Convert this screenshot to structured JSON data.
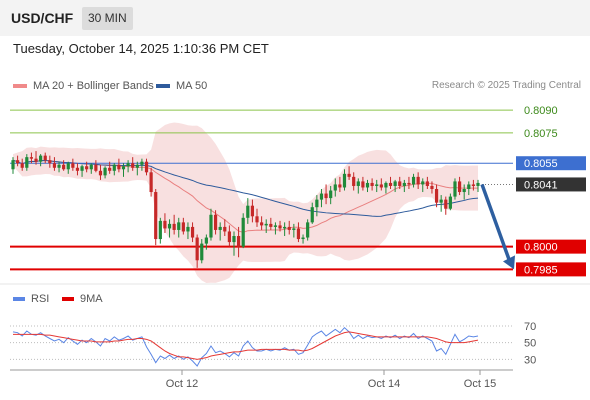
{
  "header": {
    "symbol": "USD/CHF",
    "timeframe": "30 MIN"
  },
  "datetime": "Tuesday, October 14, 2025 1:10:36 PM CET",
  "legend": {
    "ma20": "MA 20 + Bollinger Bands",
    "ma50": "MA 50"
  },
  "credit": "Research © 2025 Trading Central",
  "rsi_legend": {
    "rsi": "RSI",
    "ma": "9MA"
  },
  "colors": {
    "bollinger": "#f3c6c6",
    "ma20": "#e98080",
    "ma50": "#2e5b9c",
    "up": "#1f8a3a",
    "down": "#c62828",
    "resistance_green": "#8bc34a",
    "support_red": "#e00000",
    "pivot_blue": "#3d6fd0",
    "arrow": "#2e5fa0",
    "rsi": "#5b86e5",
    "rsi_ma": "#e53935"
  },
  "chart_data": {
    "type": "candlestick",
    "symbol": "USD/CHF",
    "ylim": [
      0.7978,
      0.8098
    ],
    "x_ticks": [
      "Oct 12",
      "Oct 14",
      "Oct 15"
    ],
    "levels": [
      {
        "value": 0.809,
        "label": "0.8090",
        "kind": "resistance"
      },
      {
        "value": 0.8075,
        "label": "0.8075",
        "kind": "resistance"
      },
      {
        "value": 0.8055,
        "label": "0.8055",
        "kind": "pivot"
      },
      {
        "value": 0.8041,
        "label": "0.8041",
        "kind": "last"
      },
      {
        "value": 0.8,
        "label": "0.8000",
        "kind": "support"
      },
      {
        "value": 0.7985,
        "label": "0.7985",
        "kind": "support"
      }
    ],
    "forecast": {
      "from": 0.8041,
      "to": 0.7985
    },
    "candles": [
      [
        0.8051,
        0.8059,
        0.8048,
        0.8057
      ],
      [
        0.8057,
        0.806,
        0.8053,
        0.8055
      ],
      [
        0.8055,
        0.8058,
        0.805,
        0.8052
      ],
      [
        0.8052,
        0.8061,
        0.805,
        0.8059
      ],
      [
        0.8059,
        0.8062,
        0.8055,
        0.8058
      ],
      [
        0.8058,
        0.8063,
        0.8054,
        0.8056
      ],
      [
        0.8056,
        0.8061,
        0.8053,
        0.806
      ],
      [
        0.806,
        0.8062,
        0.8055,
        0.8057
      ],
      [
        0.8057,
        0.806,
        0.8052,
        0.8055
      ],
      [
        0.8055,
        0.8059,
        0.805,
        0.8052
      ],
      [
        0.8052,
        0.8056,
        0.8049,
        0.8054
      ],
      [
        0.8054,
        0.8057,
        0.805,
        0.8051
      ],
      [
        0.8051,
        0.8056,
        0.8048,
        0.8055
      ],
      [
        0.8055,
        0.8058,
        0.805,
        0.8052
      ],
      [
        0.8052,
        0.8055,
        0.8047,
        0.805
      ],
      [
        0.805,
        0.8054,
        0.8046,
        0.8053
      ],
      [
        0.8053,
        0.8056,
        0.8049,
        0.8051
      ],
      [
        0.8051,
        0.8055,
        0.8048,
        0.8054
      ],
      [
        0.8054,
        0.8057,
        0.8049,
        0.805
      ],
      [
        0.805,
        0.8054,
        0.8044,
        0.8047
      ],
      [
        0.8047,
        0.8053,
        0.8045,
        0.8052
      ],
      [
        0.8052,
        0.8056,
        0.8048,
        0.805
      ],
      [
        0.805,
        0.8055,
        0.8047,
        0.8054
      ],
      [
        0.8054,
        0.8058,
        0.8049,
        0.8051
      ],
      [
        0.8051,
        0.8055,
        0.8046,
        0.8053
      ],
      [
        0.8053,
        0.8057,
        0.8049,
        0.8055
      ],
      [
        0.8055,
        0.8059,
        0.805,
        0.8052
      ],
      [
        0.8052,
        0.8056,
        0.8047,
        0.8054
      ],
      [
        0.8054,
        0.8058,
        0.805,
        0.8056
      ],
      [
        0.8056,
        0.8058,
        0.8047,
        0.8049
      ],
      [
        0.8049,
        0.8052,
        0.8033,
        0.8036
      ],
      [
        0.8036,
        0.8038,
        0.8001,
        0.8005
      ],
      [
        0.8005,
        0.8019,
        0.8002,
        0.8017
      ],
      [
        0.8017,
        0.8022,
        0.8009,
        0.8012
      ],
      [
        0.8012,
        0.8018,
        0.8006,
        0.8015
      ],
      [
        0.8015,
        0.8021,
        0.8008,
        0.8011
      ],
      [
        0.8011,
        0.8019,
        0.8006,
        0.8016
      ],
      [
        0.8016,
        0.8019,
        0.8008,
        0.801
      ],
      [
        0.801,
        0.8016,
        0.8005,
        0.8013
      ],
      [
        0.8013,
        0.8016,
        0.8003,
        0.8006
      ],
      [
        0.8006,
        0.8008,
        0.7986,
        0.7991
      ],
      [
        0.7991,
        0.8005,
        0.7989,
        0.8002
      ],
      [
        0.8002,
        0.8008,
        0.7998,
        0.8006
      ],
      [
        0.8006,
        0.8025,
        0.8004,
        0.8021
      ],
      [
        0.8021,
        0.8024,
        0.8008,
        0.8011
      ],
      [
        0.8011,
        0.8016,
        0.8004,
        0.8013
      ],
      [
        0.8013,
        0.8018,
        0.8007,
        0.801
      ],
      [
        0.801,
        0.8014,
        0.8,
        0.8003
      ],
      [
        0.8003,
        0.801,
        0.7994,
        0.8007
      ],
      [
        0.8007,
        0.8013,
        0.7993,
        0.8
      ],
      [
        0.8,
        0.8022,
        0.7999,
        0.8019
      ],
      [
        0.8019,
        0.8032,
        0.8015,
        0.8027
      ],
      [
        0.8027,
        0.8031,
        0.8016,
        0.802
      ],
      [
        0.802,
        0.8025,
        0.8013,
        0.8016
      ],
      [
        0.8016,
        0.802,
        0.8011,
        0.8014
      ],
      [
        0.8014,
        0.8018,
        0.8009,
        0.8015
      ],
      [
        0.8015,
        0.8019,
        0.8011,
        0.8013
      ],
      [
        0.8013,
        0.8016,
        0.8008,
        0.8014
      ],
      [
        0.8014,
        0.8017,
        0.801,
        0.8012
      ],
      [
        0.8012,
        0.8016,
        0.8007,
        0.8013
      ],
      [
        0.8013,
        0.8017,
        0.8008,
        0.8011
      ],
      [
        0.8011,
        0.8015,
        0.8006,
        0.8012
      ],
      [
        0.8012,
        0.8016,
        0.8003,
        0.8005
      ],
      [
        0.8005,
        0.8008,
        0.8002,
        0.8006
      ],
      [
        0.8006,
        0.8018,
        0.8004,
        0.8016
      ],
      [
        0.8016,
        0.8029,
        0.8015,
        0.8026
      ],
      [
        0.8026,
        0.8034,
        0.802,
        0.8031
      ],
      [
        0.8031,
        0.8038,
        0.8026,
        0.8035
      ],
      [
        0.8035,
        0.8041,
        0.8028,
        0.8032
      ],
      [
        0.8032,
        0.804,
        0.8028,
        0.8037
      ],
      [
        0.8037,
        0.8045,
        0.8033,
        0.8041
      ],
      [
        0.8041,
        0.8046,
        0.8036,
        0.8039
      ],
      [
        0.8039,
        0.8051,
        0.8037,
        0.8048
      ],
      [
        0.8048,
        0.8053,
        0.8044,
        0.8046
      ],
      [
        0.8046,
        0.8049,
        0.8037,
        0.804
      ],
      [
        0.804,
        0.8045,
        0.8035,
        0.8043
      ],
      [
        0.8043,
        0.8046,
        0.8037,
        0.8039
      ],
      [
        0.8039,
        0.8044,
        0.8036,
        0.8042
      ],
      [
        0.8042,
        0.8045,
        0.8037,
        0.804
      ],
      [
        0.804,
        0.8044,
        0.8036,
        0.8041
      ],
      [
        0.8041,
        0.8045,
        0.8037,
        0.8039
      ],
      [
        0.8039,
        0.8043,
        0.8035,
        0.8042
      ],
      [
        0.8042,
        0.8046,
        0.8038,
        0.804
      ],
      [
        0.804,
        0.8044,
        0.8036,
        0.8043
      ],
      [
        0.8043,
        0.8046,
        0.8038,
        0.804
      ],
      [
        0.804,
        0.8044,
        0.8036,
        0.8042
      ],
      [
        0.8042,
        0.8046,
        0.8038,
        0.8041
      ],
      [
        0.8041,
        0.8048,
        0.8039,
        0.8046
      ],
      [
        0.8046,
        0.8049,
        0.8038,
        0.8041
      ],
      [
        0.8041,
        0.8045,
        0.8036,
        0.8043
      ],
      [
        0.8043,
        0.8046,
        0.8038,
        0.804
      ],
      [
        0.804,
        0.8043,
        0.8035,
        0.8038
      ],
      [
        0.8038,
        0.8041,
        0.8026,
        0.8029
      ],
      [
        0.8029,
        0.8034,
        0.8023,
        0.8031
      ],
      [
        0.8031,
        0.8033,
        0.8021,
        0.8025
      ],
      [
        0.8025,
        0.8035,
        0.8024,
        0.8033
      ],
      [
        0.8033,
        0.8045,
        0.8031,
        0.8043
      ],
      [
        0.8043,
        0.8046,
        0.8034,
        0.8036
      ],
      [
        0.8036,
        0.8041,
        0.8031,
        0.8038
      ],
      [
        0.8038,
        0.8043,
        0.8034,
        0.8041
      ],
      [
        0.8041,
        0.8044,
        0.8037,
        0.804
      ],
      [
        0.804,
        0.8044,
        0.8036,
        0.8042
      ]
    ],
    "rsi": {
      "ticks": [
        70,
        50,
        30
      ],
      "ylim": [
        22,
        82
      ],
      "series": [
        {
          "name": "RSI",
          "values": [
            63,
            62,
            58,
            64,
            60,
            59,
            62,
            58,
            55,
            52,
            54,
            50,
            56,
            52,
            48,
            53,
            50,
            55,
            51,
            46,
            55,
            52,
            57,
            53,
            55,
            58,
            53,
            55,
            57,
            45,
            36,
            26,
            34,
            31,
            35,
            31,
            34,
            30,
            33,
            28,
            22,
            32,
            37,
            46,
            38,
            40,
            37,
            33,
            38,
            34,
            46,
            52,
            44,
            40,
            40,
            42,
            40,
            42,
            41,
            44,
            41,
            42,
            36,
            38,
            47,
            57,
            61,
            64,
            58,
            62,
            66,
            62,
            68,
            63,
            55,
            59,
            55,
            58,
            56,
            57,
            55,
            58,
            56,
            59,
            55,
            58,
            56,
            61,
            55,
            58,
            55,
            52,
            40,
            43,
            36,
            48,
            60,
            51,
            54,
            58,
            57,
            58
          ]
        },
        {
          "name": "9MA",
          "values": [
            60,
            60,
            60,
            60,
            60,
            60,
            60,
            59,
            59,
            58,
            57,
            56,
            55,
            54,
            53,
            52,
            52,
            52,
            51,
            51,
            51,
            51,
            52,
            52,
            53,
            54,
            54,
            55,
            55,
            54,
            52,
            48,
            44,
            40,
            37,
            35,
            33,
            33,
            32,
            31,
            30,
            31,
            32,
            34,
            35,
            36,
            37,
            38,
            39,
            39,
            40,
            41,
            41,
            41,
            42,
            42,
            42,
            42,
            42,
            42,
            41,
            41,
            41,
            40,
            41,
            43,
            46,
            49,
            52,
            55,
            58,
            60,
            62,
            63,
            62,
            61,
            60,
            59,
            58,
            57,
            57,
            57,
            57,
            57,
            57,
            57,
            57,
            57,
            57,
            57,
            57,
            56,
            55,
            53,
            51,
            50,
            50,
            50,
            50,
            51,
            52,
            53
          ]
        }
      ]
    }
  }
}
